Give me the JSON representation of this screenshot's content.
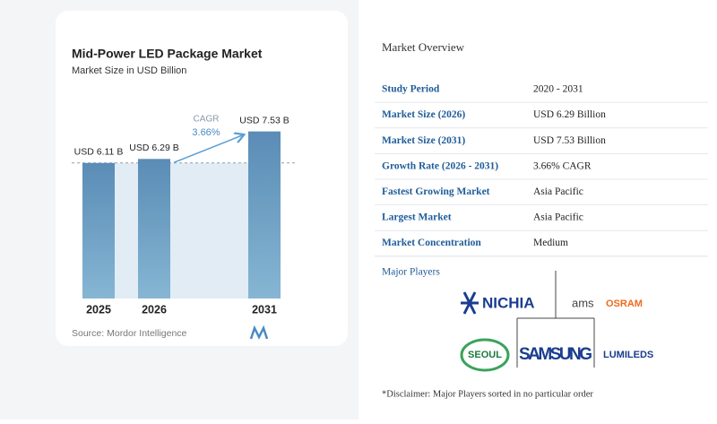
{
  "chart_data": {
    "type": "bar",
    "title": "Mid-Power LED Package Market",
    "subtitle": "Market Size in USD Billion",
    "categories": [
      "2025",
      "2026",
      "2031"
    ],
    "values": [
      6.11,
      6.29,
      7.53
    ],
    "value_labels": [
      "USD 6.11 B",
      "USD 6.29 B",
      "USD 7.53 B"
    ],
    "color": "#6a9cc4",
    "ylim": [
      0,
      8
    ],
    "annotations": {
      "cagr_label": "CAGR",
      "cagr_value": "3.66%"
    },
    "source": "Source: Mordor Intelligence"
  },
  "overview": {
    "title": "Market Overview",
    "rows": [
      [
        "Study Period",
        "2020 - 2031"
      ],
      [
        "Market Size (2026)",
        "USD 6.29 Billion"
      ],
      [
        "Market Size (2031)",
        "USD 7.53 Billion"
      ],
      [
        "Growth Rate (2026 - 2031)",
        "3.66% CAGR"
      ],
      [
        "Fastest Growing Market",
        "Asia Pacific"
      ],
      [
        "Largest Market",
        "Asia Pacific"
      ],
      [
        "Market Concentration",
        "Medium"
      ]
    ],
    "players_title": "Major Players",
    "players": [
      "NICHIA",
      "ams",
      "OSRAM",
      "SEOUL",
      "SAMSUNG",
      "LUMILEDS"
    ],
    "disclaimer": "*Disclaimer: Major Players sorted in no particular order"
  }
}
